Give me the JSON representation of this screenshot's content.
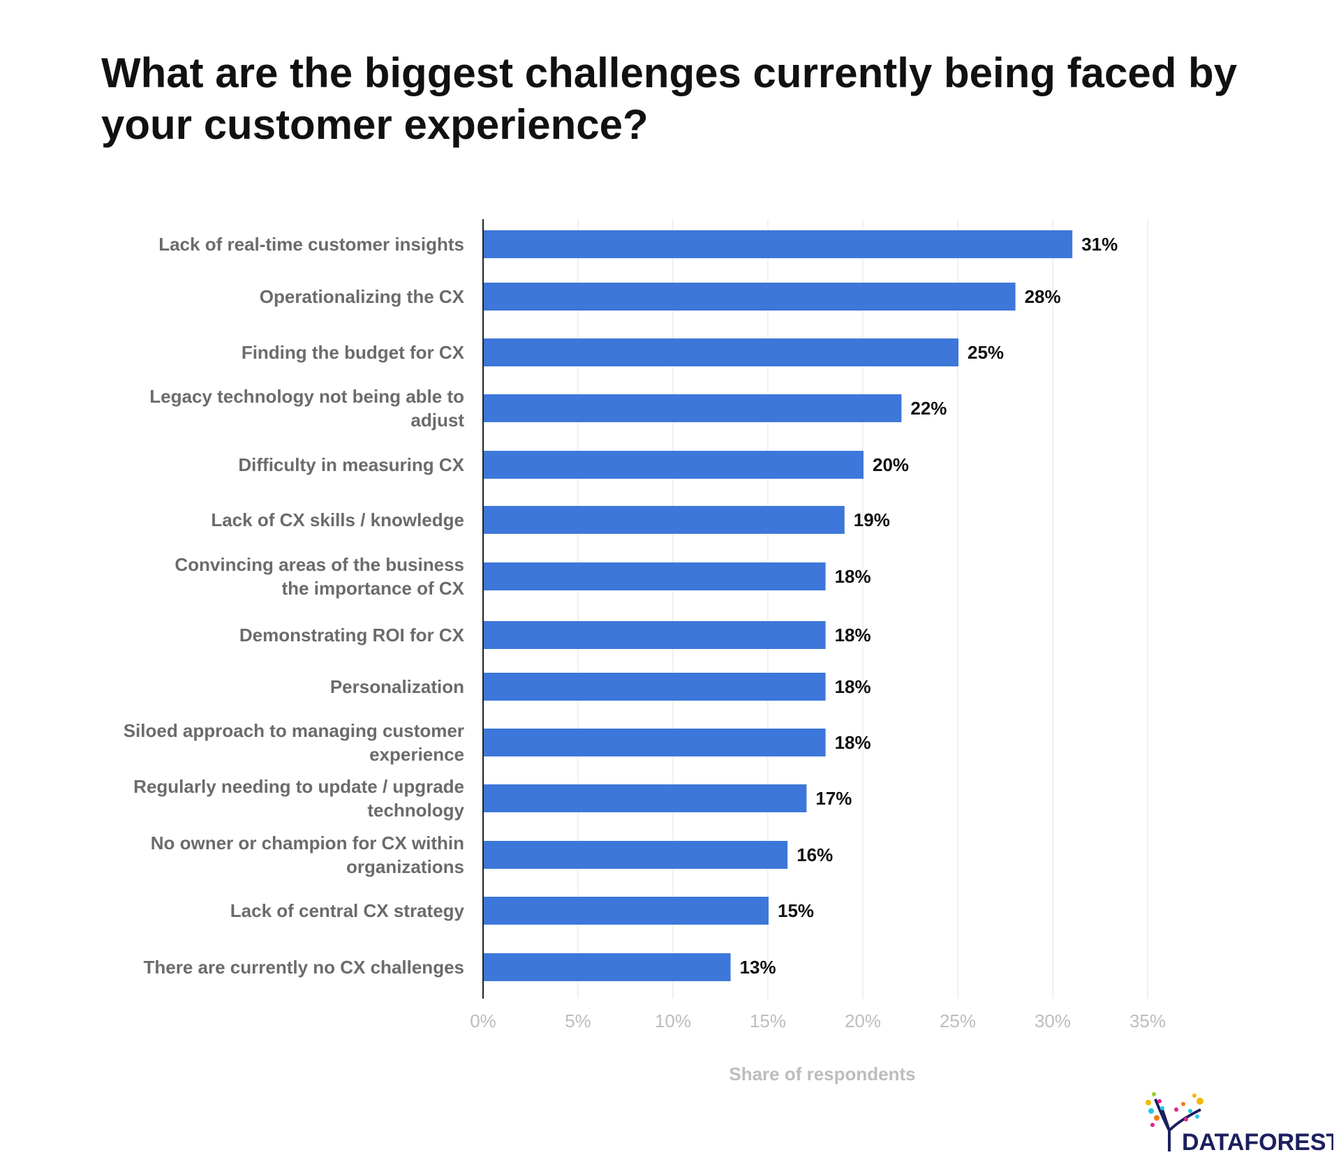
{
  "chart_data": {
    "type": "bar",
    "orientation": "horizontal",
    "title": "What are the biggest challenges currently being faced by your customer experience?",
    "xlabel": "Share of respondents",
    "ylabel": "",
    "xlim": [
      0,
      35
    ],
    "ticks": [
      "0%",
      "5%",
      "10%",
      "15%",
      "20%",
      "25%",
      "30%",
      "35%"
    ],
    "grid": true,
    "bar_color": "#3d77d9",
    "categories": [
      [
        "Lack of real-time customer insights"
      ],
      [
        "Operationalizing the CX"
      ],
      [
        "Finding the budget for CX"
      ],
      [
        "Legacy technology not being able to",
        "adjust"
      ],
      [
        "Difficulty in measuring CX"
      ],
      [
        "Lack of CX skills / knowledge"
      ],
      [
        "Convincing areas of the business",
        "the importance of CX"
      ],
      [
        "Demonstrating ROI for CX"
      ],
      [
        "Personalization"
      ],
      [
        "Siloed approach to managing customer",
        "experience"
      ],
      [
        "Regularly needing to update / upgrade",
        "technology"
      ],
      [
        "No owner or champion for CX within",
        "organizations"
      ],
      [
        "Lack of central CX strategy"
      ],
      [
        "There are currently no CX challenges"
      ]
    ],
    "values": [
      31,
      28,
      25,
      22,
      20,
      19,
      18,
      18,
      18,
      18,
      17,
      16,
      15,
      13
    ],
    "value_labels": [
      "31%",
      "28%",
      "25%",
      "22%",
      "20%",
      "19%",
      "18%",
      "18%",
      "18%",
      "18%",
      "17%",
      "16%",
      "15%",
      "13%"
    ]
  },
  "logo": {
    "text": "DATAFOREST",
    "color": "#1c1f5e"
  }
}
